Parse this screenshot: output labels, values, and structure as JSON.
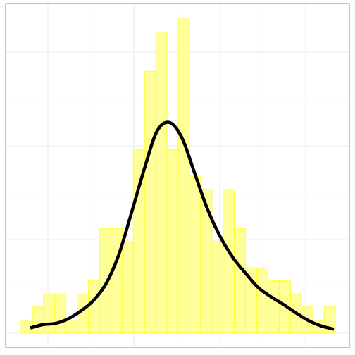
{
  "chart_data": {
    "type": "bar",
    "subtype": "histogram-with-density",
    "title": "",
    "xlabel": "",
    "ylabel": "",
    "grid": true,
    "legend": "none",
    "bins": 28,
    "counts": [
      1,
      2,
      3,
      3,
      1,
      3,
      4,
      8,
      8,
      7,
      14,
      20,
      23,
      14,
      24,
      12,
      11,
      7,
      11,
      8,
      5,
      5,
      4,
      4,
      3,
      2,
      1,
      2
    ],
    "density_curve": [
      0.4,
      0.65,
      0.75,
      1.1,
      1.7,
      2.5,
      3.8,
      6.0,
      9.2,
      12.5,
      15.4,
      16.1,
      14.9,
      12.2,
      9.5,
      7.4,
      5.8,
      4.6,
      3.5,
      2.8,
      2.2,
      1.55,
      0.95,
      0.55,
      0.3
    ],
    "ylim": [
      0,
      24
    ],
    "colors": {
      "bar_fill": "#ffff99",
      "bar_stroke": "#ffff33",
      "curve": "#000000",
      "grid_major": "#ebebeb",
      "grid_minor": "#f5f5f5",
      "panel_border": "#888888"
    }
  }
}
